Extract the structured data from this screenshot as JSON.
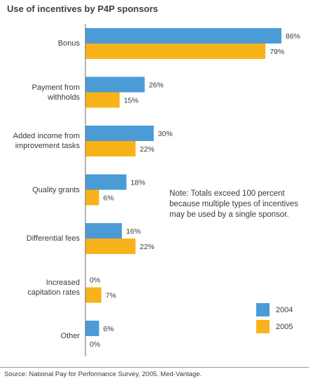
{
  "chart_data": {
    "type": "bar",
    "orientation": "horizontal",
    "title": "Use of incentives by P4P sponsors",
    "categories": [
      [
        "Bonus"
      ],
      [
        "Payment from",
        "withholds"
      ],
      [
        "Added income from",
        "improvement tasks"
      ],
      [
        "Quality grants"
      ],
      [
        "Differential fees"
      ],
      [
        "Increased",
        "capitation rates"
      ],
      [
        "Other"
      ]
    ],
    "series": [
      {
        "name": "2004",
        "values": [
          86,
          26,
          30,
          18,
          16,
          0,
          6
        ],
        "labels": [
          "86%",
          "26%",
          "30%",
          "18%",
          "16%",
          "0%",
          "6%"
        ]
      },
      {
        "name": "2005",
        "values": [
          79,
          15,
          22,
          6,
          22,
          7,
          0
        ],
        "labels": [
          "79%",
          "15%",
          "22%",
          "6%",
          "22%",
          "7%",
          "0%"
        ]
      }
    ],
    "xlim": [
      0,
      100
    ],
    "grid": false,
    "legend_position": "bottom-right",
    "note": [
      "Note: Totals exceed 100 percent",
      "because multiple types of incentives",
      "may be used by a single sponsor."
    ],
    "source": "Source: National Pay for Performance Survey, 2005. Med-Vantage."
  },
  "colors": {
    "series_2004": "#4b9bd6",
    "series_2005": "#f9b31a",
    "axis": "#6e6e6e"
  }
}
